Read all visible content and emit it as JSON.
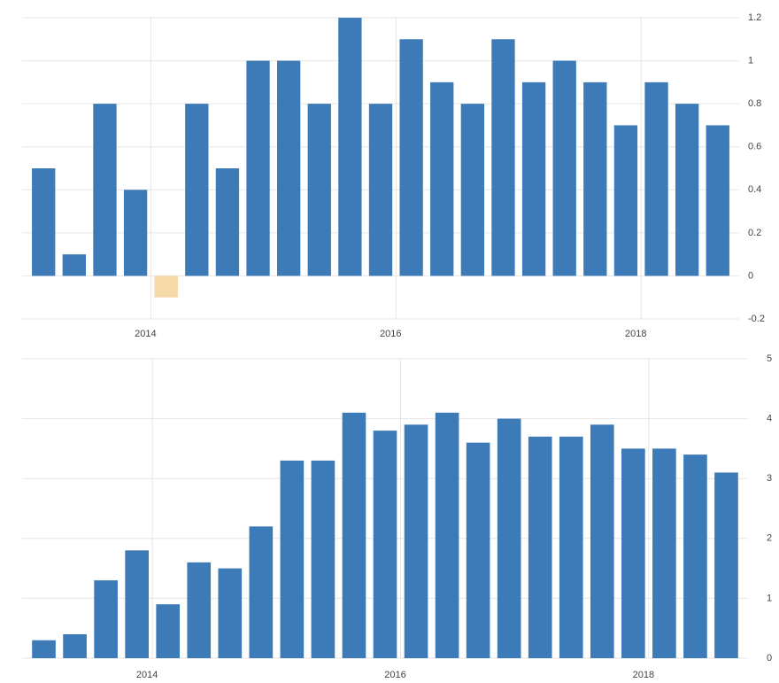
{
  "chart_data": [
    {
      "type": "bar",
      "x": [
        2013.125,
        2013.375,
        2013.625,
        2013.875,
        2014.125,
        2014.375,
        2014.625,
        2014.875,
        2015.125,
        2015.375,
        2015.625,
        2015.875,
        2016.125,
        2016.375,
        2016.625,
        2016.875,
        2017.125,
        2017.375,
        2017.625,
        2017.875,
        2018.125,
        2018.375,
        2018.625
      ],
      "values": [
        0.5,
        0.1,
        0.8,
        0.4,
        -0.1,
        0.8,
        0.5,
        1.0,
        1.0,
        0.8,
        1.2,
        0.8,
        1.1,
        0.9,
        0.8,
        1.1,
        0.9,
        1.0,
        0.9,
        0.7,
        0.9,
        0.8,
        0.7
      ],
      "xlim": [
        2012.95,
        2018.8
      ],
      "xticks": [
        2014,
        2016,
        2018
      ],
      "ylim": [
        -0.2,
        1.2
      ],
      "yticks": [
        -0.2,
        0,
        0.2,
        0.4,
        0.6,
        0.8,
        1,
        1.2
      ],
      "color": "#3d7ab8",
      "negative_color": "#f5d9a6",
      "grid": true
    },
    {
      "type": "bar",
      "x": [
        2013.125,
        2013.375,
        2013.625,
        2013.875,
        2014.125,
        2014.375,
        2014.625,
        2014.875,
        2015.125,
        2015.375,
        2015.625,
        2015.875,
        2016.125,
        2016.375,
        2016.625,
        2016.875,
        2017.125,
        2017.375,
        2017.625,
        2017.875,
        2018.125,
        2018.375,
        2018.625
      ],
      "values": [
        0.3,
        0.4,
        1.3,
        1.8,
        0.9,
        1.6,
        1.5,
        2.2,
        3.3,
        3.3,
        4.1,
        3.8,
        3.9,
        4.1,
        3.6,
        4.0,
        3.7,
        3.7,
        3.9,
        3.5,
        3.5,
        3.4,
        3.1
      ],
      "xlim": [
        2012.95,
        2018.8
      ],
      "xticks": [
        2014,
        2016,
        2018
      ],
      "ylim": [
        0,
        5
      ],
      "yticks": [
        0,
        1,
        2,
        3,
        4,
        5
      ],
      "color": "#3d7ab8",
      "negative_color": "#f5d9a6",
      "grid": true
    }
  ]
}
